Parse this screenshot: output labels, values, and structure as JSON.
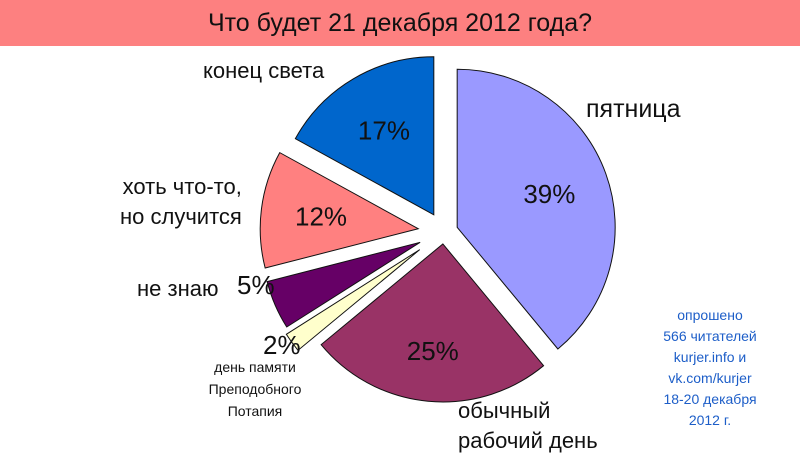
{
  "title": "Что будет 21 декабря 2012 года?",
  "source_lines": [
    "опрошено",
    "566 читателей",
    "kurjer.info и",
    "vk.com/kurjer",
    "18-20 декабря",
    "2012 г."
  ],
  "chart_data": {
    "type": "pie",
    "title": "Что будет 21 декабря 2012 года?",
    "slices": [
      {
        "key": "friday",
        "label": "пятница",
        "value": 39,
        "pct_label": "39%",
        "color": "#9a99ff"
      },
      {
        "key": "workday",
        "label": "обычный рабочий день",
        "label_lines": [
          "обычный",
          "рабочий день"
        ],
        "value": 25,
        "pct_label": "25%",
        "color": "#993366"
      },
      {
        "key": "potapy",
        "label": "день памяти Преподобного Потапия",
        "label_lines": [
          "день памяти",
          "Преподобного",
          "Потапия"
        ],
        "value": 2,
        "pct_label": "2%",
        "color": "#ffffcc"
      },
      {
        "key": "dontknow",
        "label": "не знаю",
        "value": 5,
        "pct_label": "5%",
        "color": "#660066"
      },
      {
        "key": "something",
        "label": "хоть что-то, но случится",
        "label_lines": [
          "хоть что-то,",
          "но случится"
        ],
        "value": 12,
        "pct_label": "12%",
        "color": "#ff8080"
      },
      {
        "key": "endworld",
        "label": "конец света",
        "value": 17,
        "pct_label": "17%",
        "color": "#0066cc"
      }
    ]
  }
}
